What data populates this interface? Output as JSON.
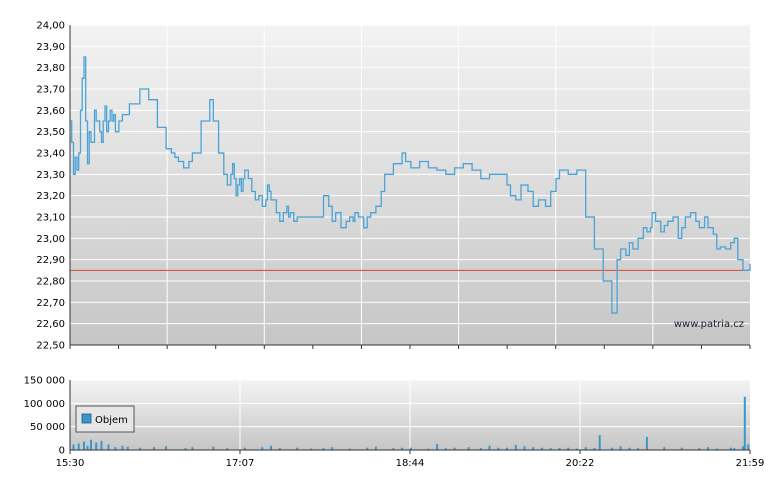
{
  "watermark": "www.patria.cz",
  "legend_label": "Objem",
  "colors": {
    "price_line": "#4aa3d6",
    "reference_line": "#d9463a",
    "volume_bar": "#3c96c8",
    "grid": "#ffffff",
    "plot_bg_top": "#f2f2f2",
    "plot_bg_bottom": "#c8c8c8"
  },
  "chart_data": [
    {
      "type": "line",
      "name": "price",
      "ylim": [
        22.5,
        24.0
      ],
      "yticks": [
        "24,00",
        "23,90",
        "23,80",
        "23,70",
        "23,60",
        "23,50",
        "23,40",
        "23,30",
        "23,20",
        "23,10",
        "23,00",
        "22,90",
        "22,80",
        "22,70",
        "22,60",
        "22,50"
      ],
      "reference_value": 22.85,
      "grid": true,
      "xlim_minutes": [
        0,
        389
      ],
      "x_minutes": [
        0,
        1,
        2,
        3,
        4,
        5,
        6,
        7,
        8,
        9,
        10,
        11,
        12,
        14,
        15,
        17,
        18,
        19,
        20,
        21,
        22,
        23,
        24,
        25,
        26,
        27,
        28,
        30,
        34,
        40,
        42,
        45,
        50,
        55,
        58,
        60,
        62,
        65,
        68,
        70,
        75,
        80,
        82,
        85,
        88,
        90,
        92,
        93,
        94,
        95,
        96,
        97,
        98,
        99,
        100,
        102,
        104,
        106,
        108,
        110,
        112,
        113,
        114,
        115,
        118,
        120,
        122,
        124,
        125,
        126,
        128,
        130,
        135,
        140,
        145,
        148,
        150,
        152,
        155,
        158,
        160,
        162,
        163,
        165,
        168,
        170,
        172,
        175,
        178,
        180,
        185,
        190,
        192,
        195,
        200,
        205,
        210,
        215,
        220,
        225,
        230,
        235,
        240,
        245,
        250,
        252,
        255,
        258,
        262,
        265,
        268,
        272,
        275,
        278,
        280,
        285,
        290,
        295,
        300,
        305,
        310,
        313,
        315,
        318,
        320,
        322,
        325,
        328,
        330,
        332,
        333,
        335,
        338,
        340,
        342,
        345,
        348,
        350,
        352,
        355,
        358,
        360,
        363,
        365,
        368,
        370,
        372,
        375,
        378,
        380,
        382,
        385,
        389
      ],
      "values": [
        23.55,
        23.45,
        23.3,
        23.38,
        23.32,
        23.4,
        23.6,
        23.75,
        23.85,
        23.55,
        23.35,
        23.5,
        23.45,
        23.6,
        23.55,
        23.5,
        23.45,
        23.55,
        23.62,
        23.5,
        23.55,
        23.6,
        23.55,
        23.58,
        23.5,
        23.5,
        23.55,
        23.58,
        23.63,
        23.7,
        23.7,
        23.65,
        23.52,
        23.42,
        23.4,
        23.38,
        23.36,
        23.33,
        23.36,
        23.4,
        23.55,
        23.65,
        23.55,
        23.4,
        23.3,
        23.25,
        23.3,
        23.35,
        23.28,
        23.2,
        23.25,
        23.28,
        23.22,
        23.28,
        23.32,
        23.28,
        23.22,
        23.18,
        23.2,
        23.15,
        23.18,
        23.25,
        23.22,
        23.18,
        23.12,
        23.08,
        23.12,
        23.15,
        23.1,
        23.12,
        23.08,
        23.1,
        23.1,
        23.1,
        23.2,
        23.15,
        23.08,
        23.12,
        23.05,
        23.08,
        23.1,
        23.08,
        23.12,
        23.1,
        23.05,
        23.1,
        23.12,
        23.15,
        23.22,
        23.3,
        23.35,
        23.4,
        23.36,
        23.33,
        23.36,
        23.33,
        23.32,
        23.3,
        23.33,
        23.35,
        23.32,
        23.28,
        23.3,
        23.3,
        23.25,
        23.2,
        23.18,
        23.25,
        23.22,
        23.15,
        23.18,
        23.15,
        23.22,
        23.28,
        23.32,
        23.3,
        23.32,
        23.1,
        22.95,
        22.8,
        22.65,
        22.9,
        22.95,
        22.92,
        22.98,
        22.95,
        23.0,
        23.05,
        23.03,
        23.05,
        23.12,
        23.08,
        23.03,
        23.06,
        23.08,
        23.1,
        23.0,
        23.05,
        23.1,
        23.12,
        23.08,
        23.05,
        23.1,
        23.05,
        23.02,
        22.95,
        22.96,
        22.95,
        22.98,
        23.0,
        22.9,
        22.85,
        22.88
      ]
    },
    {
      "type": "bar",
      "name": "Objem",
      "ylim": [
        0,
        150000
      ],
      "yticks": [
        "150 000",
        "100 000",
        "50 000",
        "0"
      ],
      "xticks": [
        "15:30",
        "17:07",
        "18:44",
        "20:22",
        "21:59"
      ],
      "xlim_minutes": [
        0,
        389
      ],
      "x_minutes": [
        2,
        5,
        8,
        10,
        12,
        15,
        18,
        22,
        26,
        30,
        33,
        40,
        48,
        55,
        66,
        70,
        82,
        90,
        100,
        110,
        115,
        120,
        130,
        138,
        145,
        150,
        160,
        170,
        175,
        185,
        190,
        195,
        205,
        210,
        215,
        220,
        228,
        235,
        240,
        245,
        250,
        255,
        260,
        265,
        270,
        275,
        280,
        285,
        290,
        295,
        300,
        303,
        310,
        315,
        320,
        325,
        330,
        340,
        350,
        360,
        365,
        370,
        378,
        380,
        385,
        386,
        388
      ],
      "values": [
        12000,
        14000,
        18000,
        9000,
        22000,
        16000,
        20000,
        12000,
        6000,
        9000,
        7000,
        5000,
        6000,
        8000,
        4000,
        6000,
        7000,
        4000,
        5000,
        6000,
        9000,
        4000,
        5000,
        3000,
        4000,
        6000,
        3000,
        5000,
        7000,
        4000,
        5000,
        5000,
        3000,
        13000,
        4000,
        5000,
        6000,
        4000,
        9000,
        5000,
        5000,
        11000,
        8000,
        6000,
        5000,
        4000,
        4000,
        5000,
        3000,
        6000,
        4000,
        32000,
        5000,
        8000,
        5000,
        4000,
        28000,
        6000,
        5000,
        4000,
        6000,
        3000,
        5000,
        4000,
        8000,
        114000,
        12000
      ]
    }
  ]
}
